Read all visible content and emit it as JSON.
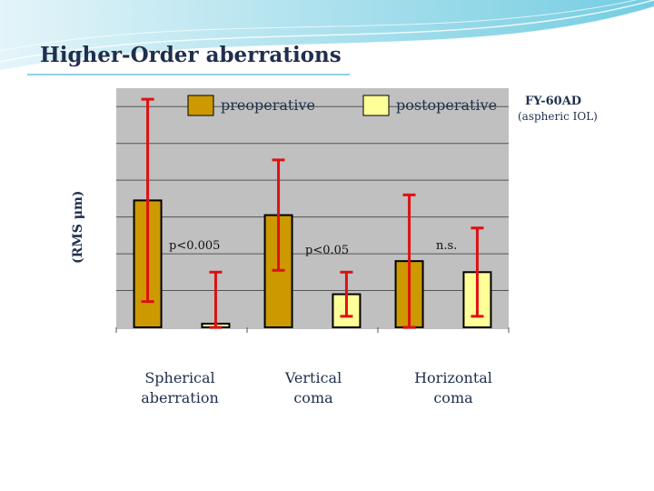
{
  "slide": {
    "title": "Higher-Order aberrations",
    "lens_name": "FY-60AD",
    "lens_desc": "(aspheric IOL)"
  },
  "colors": {
    "preoperative": "#cc9900",
    "postoperative": "#ffff99",
    "error_bar": "#dd1111",
    "plot_bg": "#c0c0c0",
    "text": "#1f2f4d"
  },
  "chart_data": {
    "type": "bar",
    "title": "",
    "xlabel": "",
    "ylabel": "(RMS μm)",
    "categories": [
      "Spherical aberration",
      "Vertical coma",
      "Horizontal coma"
    ],
    "category_lines": [
      [
        "Spherical",
        "aberration"
      ],
      [
        "Vertical",
        "coma"
      ],
      [
        "Horizontal",
        "coma"
      ]
    ],
    "ylim": [
      0,
      0.65
    ],
    "grid": true,
    "legend_position": "top",
    "series": [
      {
        "name": "preoperative",
        "values": [
          0.345,
          0.305,
          0.18
        ],
        "errors": [
          0.275,
          0.15,
          0.18
        ]
      },
      {
        "name": "postoperative",
        "values": [
          0.01,
          0.09,
          0.15
        ],
        "errors": [
          0.14,
          0.06,
          0.12
        ]
      }
    ],
    "annotations": [
      "p<0.005",
      "p<0.05",
      "n.s."
    ]
  }
}
